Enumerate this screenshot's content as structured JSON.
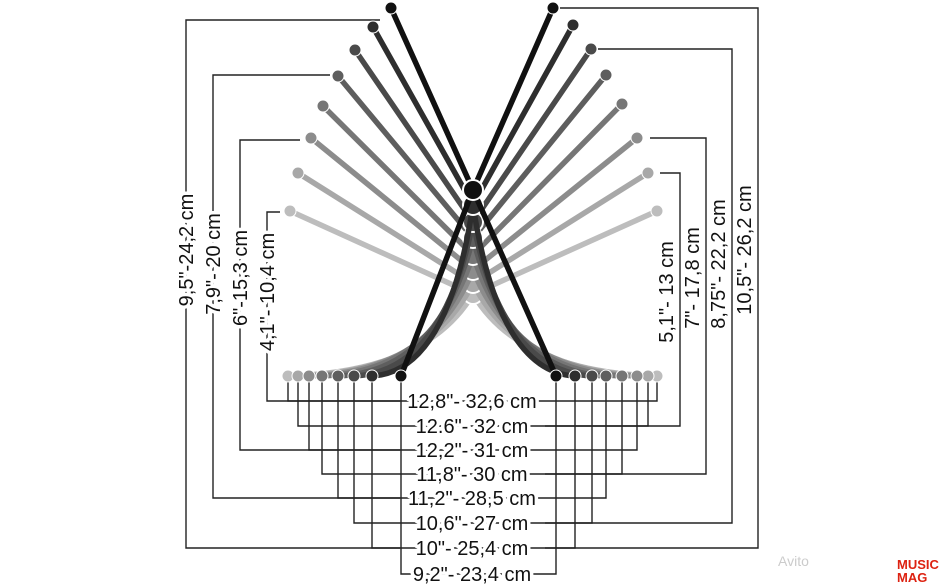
{
  "bottom_labels": [
    "12,8\"- 32,6 cm",
    "12.6\"- 32 cm",
    "12,2\"- 31 cm",
    "11,8\"- 30 cm",
    "11,2\"- 28,5 cm",
    "10,6\"- 27 cm",
    "10\"- 25,4 cm",
    "9,2\"- 23,4 cm"
  ],
  "left_labels": [
    "9,5\"-24,2 cm",
    "7,9\"- 20 cm",
    "6\"-15,3 cm",
    "4,1\"- 10,4 cm"
  ],
  "right_labels": [
    "5,1\"- 13 cm",
    "7\"- 17,8 cm",
    "8,75\"- 22,2 cm",
    "10,5\"- 26,2 cm"
  ],
  "watermarks": [
    "Avito",
    "MUSIC",
    "MAG"
  ]
}
